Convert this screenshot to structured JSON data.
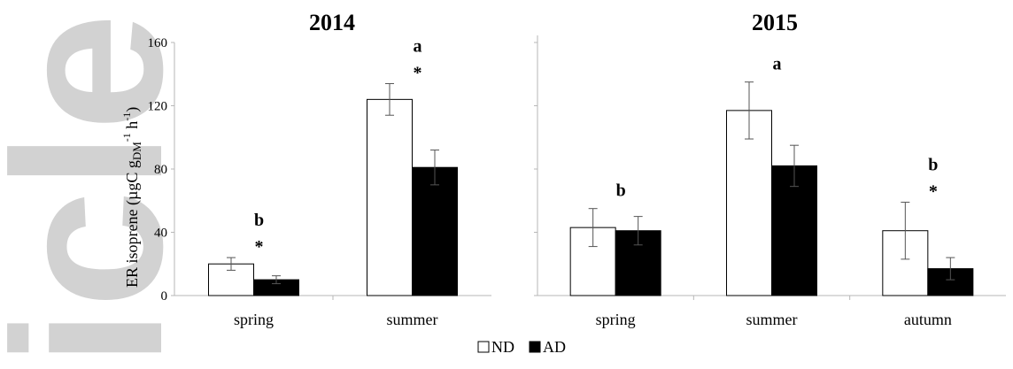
{
  "chart_data": [
    {
      "type": "bar",
      "title": "2014",
      "categories": [
        "spring",
        "summer"
      ],
      "series": [
        {
          "name": "ND",
          "values": [
            20,
            124
          ],
          "errors": [
            4,
            10
          ]
        },
        {
          "name": "AD",
          "values": [
            10,
            81
          ],
          "errors": [
            2.5,
            11
          ]
        }
      ],
      "ylabel_main": "ER isoprene (µgC g",
      "ylabel_sub": "DM",
      "ylabel_sup1": "-1",
      "ylabel_mid": " h",
      "ylabel_sup2": "-1",
      "ylabel_end": ")",
      "ylim": [
        0,
        160
      ],
      "yticks": [
        "0",
        "40",
        "80",
        "120",
        "160"
      ],
      "annotations": [
        {
          "category": "spring",
          "letter": "b",
          "star": "*"
        },
        {
          "category": "summer",
          "letter": "a",
          "star": "*"
        }
      ]
    },
    {
      "type": "bar",
      "title": "2015",
      "categories": [
        "spring",
        "summer",
        "autumn"
      ],
      "series": [
        {
          "name": "ND",
          "values": [
            43,
            117,
            41
          ],
          "errors": [
            12,
            18,
            18
          ]
        },
        {
          "name": "AD",
          "values": [
            41,
            82,
            17
          ],
          "errors": [
            9,
            13,
            7
          ]
        }
      ],
      "ylim": [
        0,
        160
      ],
      "yticks": [
        "0",
        "40",
        "80",
        "120",
        "160"
      ],
      "annotations": [
        {
          "category": "spring",
          "letter": "b",
          "star": ""
        },
        {
          "category": "summer",
          "letter": "a",
          "star": ""
        },
        {
          "category": "autumn",
          "letter": "b",
          "star": "*"
        }
      ]
    }
  ],
  "legend": {
    "items": [
      {
        "name": "ND",
        "color": "#ffffff"
      },
      {
        "name": "AD",
        "color": "#000000"
      }
    ],
    "placement": "bottom-center"
  },
  "colors": {
    "ND": "#ffffff",
    "AD": "#000000",
    "watermark": "#d2d2d2"
  },
  "watermark": {
    "text": "icle"
  }
}
